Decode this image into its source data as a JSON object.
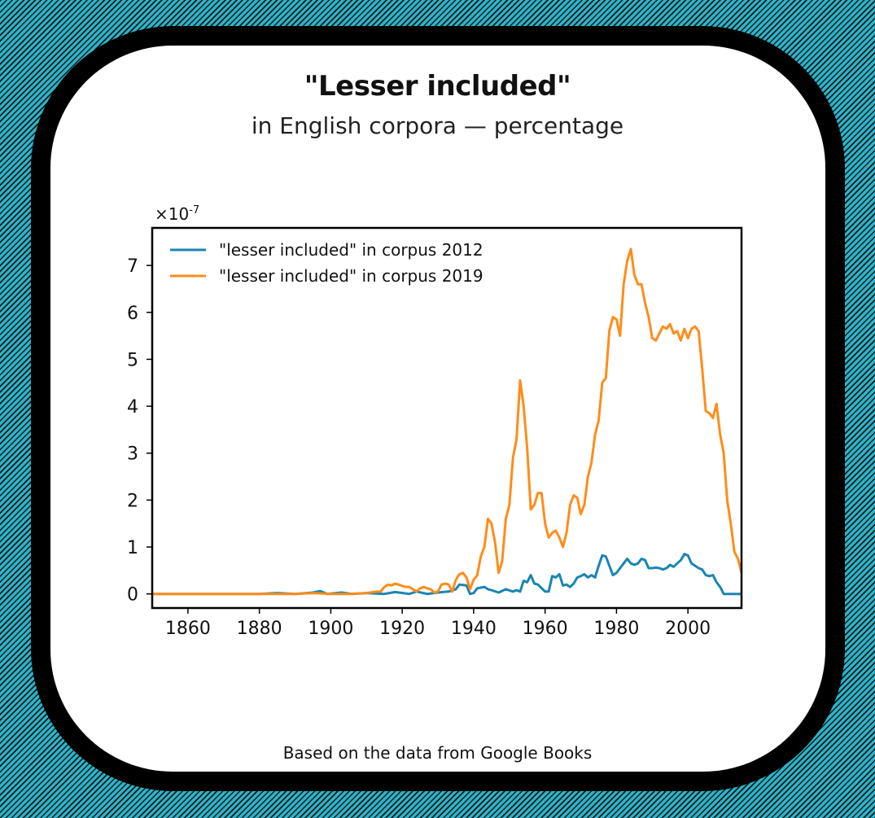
{
  "title": "\"Lesser included\"",
  "subtitle": "in English corpora — percentage",
  "footer": "Based on the data from Google Books",
  "colors": {
    "series_2012": "#1a85b3",
    "series_2019": "#ff8c1a",
    "background": "#2bb3c9"
  },
  "chart_data": {
    "type": "line",
    "title": "\"Lesser included\"",
    "subtitle": "in English corpora — percentage",
    "y_multiplier_label": "×10",
    "y_multiplier_exponent": "-7",
    "xlim": [
      1850,
      2015
    ],
    "ylim": [
      -0.3,
      7.8
    ],
    "x_ticks": [
      1860,
      1880,
      1900,
      1920,
      1940,
      1960,
      1980,
      2000
    ],
    "y_ticks": [
      0,
      1,
      2,
      3,
      4,
      5,
      6,
      7
    ],
    "grid": false,
    "legend_position": "top-left",
    "series": [
      {
        "name": "\"lesser included\" in corpus 2012",
        "color": "#1a85b3",
        "points": [
          [
            1850,
            0
          ],
          [
            1860,
            0
          ],
          [
            1870,
            0
          ],
          [
            1880,
            0
          ],
          [
            1885,
            0.02
          ],
          [
            1890,
            0
          ],
          [
            1895,
            0.03
          ],
          [
            1897,
            0.06
          ],
          [
            1899,
            0
          ],
          [
            1903,
            0.03
          ],
          [
            1906,
            0
          ],
          [
            1910,
            0.02
          ],
          [
            1915,
            0
          ],
          [
            1918,
            0.04
          ],
          [
            1922,
            0
          ],
          [
            1924,
            0.05
          ],
          [
            1927,
            0
          ],
          [
            1930,
            0.03
          ],
          [
            1933,
            0.05
          ],
          [
            1935,
            0.1
          ],
          [
            1936,
            0.2
          ],
          [
            1938,
            0.18
          ],
          [
            1939,
            0
          ],
          [
            1940,
            0.02
          ],
          [
            1941,
            0.12
          ],
          [
            1943,
            0.15
          ],
          [
            1944,
            0.1
          ],
          [
            1945,
            0.08
          ],
          [
            1947,
            0.03
          ],
          [
            1949,
            0.1
          ],
          [
            1951,
            0.05
          ],
          [
            1952,
            0.08
          ],
          [
            1953,
            0.05
          ],
          [
            1954,
            0.28
          ],
          [
            1955,
            0.25
          ],
          [
            1956,
            0.4
          ],
          [
            1957,
            0.22
          ],
          [
            1958,
            0.2
          ],
          [
            1960,
            0.05
          ],
          [
            1961,
            0.05
          ],
          [
            1962,
            0.38
          ],
          [
            1963,
            0.35
          ],
          [
            1964,
            0.42
          ],
          [
            1965,
            0.18
          ],
          [
            1966,
            0.2
          ],
          [
            1967,
            0.15
          ],
          [
            1968,
            0.22
          ],
          [
            1969,
            0.35
          ],
          [
            1970,
            0.38
          ],
          [
            1971,
            0.42
          ],
          [
            1972,
            0.35
          ],
          [
            1973,
            0.4
          ],
          [
            1974,
            0.35
          ],
          [
            1975,
            0.6
          ],
          [
            1976,
            0.82
          ],
          [
            1977,
            0.8
          ],
          [
            1979,
            0.4
          ],
          [
            1980,
            0.45
          ],
          [
            1981,
            0.55
          ],
          [
            1982,
            0.65
          ],
          [
            1983,
            0.75
          ],
          [
            1984,
            0.65
          ],
          [
            1985,
            0.62
          ],
          [
            1986,
            0.65
          ],
          [
            1987,
            0.75
          ],
          [
            1988,
            0.72
          ],
          [
            1989,
            0.55
          ],
          [
            1990,
            0.55
          ],
          [
            1991,
            0.56
          ],
          [
            1992,
            0.55
          ],
          [
            1993,
            0.52
          ],
          [
            1994,
            0.55
          ],
          [
            1995,
            0.62
          ],
          [
            1996,
            0.58
          ],
          [
            1997,
            0.65
          ],
          [
            1998,
            0.72
          ],
          [
            1999,
            0.85
          ],
          [
            2000,
            0.82
          ],
          [
            2001,
            0.65
          ],
          [
            2002,
            0.6
          ],
          [
            2003,
            0.55
          ],
          [
            2004,
            0.52
          ],
          [
            2005,
            0.4
          ],
          [
            2006,
            0.38
          ],
          [
            2007,
            0.4
          ],
          [
            2008,
            0.25
          ],
          [
            2009,
            0.15
          ],
          [
            2010,
            0
          ],
          [
            2012,
            0
          ],
          [
            2015,
            0
          ]
        ]
      },
      {
        "name": "\"lesser included\" in corpus 2019",
        "color": "#ff8c1a",
        "points": [
          [
            1850,
            0
          ],
          [
            1860,
            0
          ],
          [
            1870,
            0
          ],
          [
            1880,
            0
          ],
          [
            1890,
            0
          ],
          [
            1895,
            0.02
          ],
          [
            1900,
            0
          ],
          [
            1905,
            0
          ],
          [
            1910,
            0.02
          ],
          [
            1913,
            0.05
          ],
          [
            1914,
            0.05
          ],
          [
            1915,
            0.15
          ],
          [
            1916,
            0.2
          ],
          [
            1917,
            0.18
          ],
          [
            1918,
            0.22
          ],
          [
            1919,
            0.2
          ],
          [
            1920,
            0.17
          ],
          [
            1921,
            0.15
          ],
          [
            1922,
            0.15
          ],
          [
            1923,
            0.1
          ],
          [
            1924,
            0.05
          ],
          [
            1925,
            0.12
          ],
          [
            1926,
            0.15
          ],
          [
            1927,
            0.12
          ],
          [
            1928,
            0.1
          ],
          [
            1929,
            0.03
          ],
          [
            1930,
            0.05
          ],
          [
            1931,
            0.2
          ],
          [
            1932,
            0.22
          ],
          [
            1933,
            0.2
          ],
          [
            1934,
            0.05
          ],
          [
            1935,
            0.3
          ],
          [
            1936,
            0.42
          ],
          [
            1937,
            0.45
          ],
          [
            1938,
            0.35
          ],
          [
            1939,
            0.1
          ],
          [
            1940,
            0.3
          ],
          [
            1941,
            0.4
          ],
          [
            1942,
            0.8
          ],
          [
            1943,
            1.0
          ],
          [
            1944,
            1.6
          ],
          [
            1945,
            1.5
          ],
          [
            1946,
            1.1
          ],
          [
            1947,
            0.45
          ],
          [
            1948,
            0.7
          ],
          [
            1949,
            1.6
          ],
          [
            1950,
            1.9
          ],
          [
            1951,
            2.9
          ],
          [
            1952,
            3.3
          ],
          [
            1953,
            4.55
          ],
          [
            1954,
            4.0
          ],
          [
            1955,
            3.1
          ],
          [
            1956,
            1.8
          ],
          [
            1957,
            1.9
          ],
          [
            1958,
            2.15
          ],
          [
            1959,
            2.15
          ],
          [
            1960,
            1.5
          ],
          [
            1961,
            1.2
          ],
          [
            1962,
            1.3
          ],
          [
            1963,
            1.35
          ],
          [
            1964,
            1.2
          ],
          [
            1965,
            1.0
          ],
          [
            1966,
            1.3
          ],
          [
            1967,
            1.9
          ],
          [
            1968,
            2.1
          ],
          [
            1969,
            2.05
          ],
          [
            1970,
            1.7
          ],
          [
            1971,
            1.9
          ],
          [
            1972,
            2.5
          ],
          [
            1973,
            2.8
          ],
          [
            1974,
            3.4
          ],
          [
            1975,
            3.7
          ],
          [
            1976,
            4.5
          ],
          [
            1977,
            4.6
          ],
          [
            1978,
            5.6
          ],
          [
            1979,
            5.9
          ],
          [
            1980,
            5.85
          ],
          [
            1981,
            5.5
          ],
          [
            1982,
            6.6
          ],
          [
            1983,
            7.1
          ],
          [
            1984,
            7.35
          ],
          [
            1985,
            6.8
          ],
          [
            1986,
            6.6
          ],
          [
            1987,
            6.6
          ],
          [
            1988,
            6.2
          ],
          [
            1989,
            5.9
          ],
          [
            1990,
            5.45
          ],
          [
            1991,
            5.4
          ],
          [
            1992,
            5.55
          ],
          [
            1993,
            5.7
          ],
          [
            1994,
            5.65
          ],
          [
            1995,
            5.75
          ],
          [
            1996,
            5.55
          ],
          [
            1997,
            5.6
          ],
          [
            1998,
            5.4
          ],
          [
            1999,
            5.65
          ],
          [
            2000,
            5.45
          ],
          [
            2001,
            5.65
          ],
          [
            2002,
            5.7
          ],
          [
            2003,
            5.6
          ],
          [
            2004,
            4.8
          ],
          [
            2005,
            3.9
          ],
          [
            2006,
            3.85
          ],
          [
            2007,
            3.75
          ],
          [
            2008,
            4.05
          ],
          [
            2009,
            3.4
          ],
          [
            2010,
            3.0
          ],
          [
            2011,
            2.0
          ],
          [
            2012,
            1.5
          ],
          [
            2013,
            0.9
          ],
          [
            2014,
            0.75
          ],
          [
            2015,
            0.45
          ]
        ]
      }
    ]
  }
}
